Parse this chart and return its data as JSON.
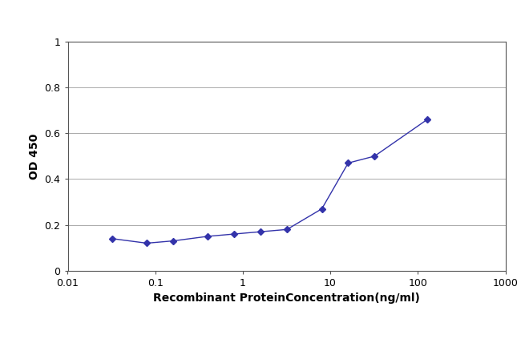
{
  "x_values": [
    0.032,
    0.08,
    0.16,
    0.4,
    0.8,
    1.6,
    3.2,
    8,
    16,
    32,
    128
  ],
  "y_values": [
    0.14,
    0.12,
    0.13,
    0.15,
    0.16,
    0.17,
    0.18,
    0.27,
    0.47,
    0.5,
    0.66
  ],
  "line_color": "#3333aa",
  "marker_color": "#3333aa",
  "marker": "D",
  "marker_size": 4,
  "line_width": 1.0,
  "xlabel": "Recombinant ProteinConcentration(ng/ml)",
  "ylabel": "OD 450",
  "xlim": [
    0.01,
    1000
  ],
  "ylim": [
    0,
    1.0
  ],
  "yticks": [
    0,
    0.2,
    0.4,
    0.6,
    0.8,
    1.0
  ],
  "ytick_labels": [
    "0",
    "0.2",
    "0.4",
    "0.6",
    "0.8",
    "1"
  ],
  "xtick_labels": [
    "0.01",
    "0.1",
    "1",
    "10",
    "100",
    "1000"
  ],
  "xtick_values": [
    0.01,
    0.1,
    1,
    10,
    100,
    1000
  ],
  "background_color": "#ffffff",
  "plot_bg_color": "#ffffff",
  "grid_color": "#aaaaaa",
  "xlabel_fontsize": 10,
  "ylabel_fontsize": 10,
  "tick_fontsize": 9,
  "figure_width": 6.5,
  "figure_height": 4.33
}
